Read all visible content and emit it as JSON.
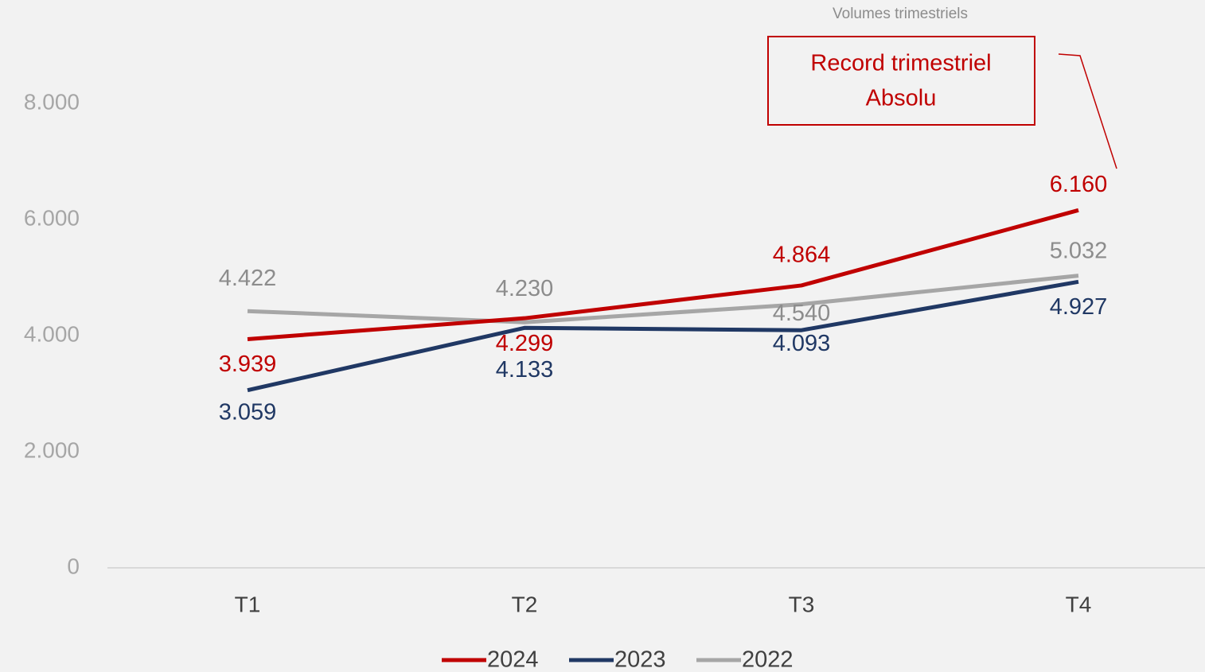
{
  "chart_data": {
    "type": "line",
    "title": "Volumes trimestriels",
    "annotation": [
      "Record trimestriel",
      "Absolu"
    ],
    "categories": [
      "T1",
      "T2",
      "T3",
      "T4"
    ],
    "series": [
      {
        "name": "2024",
        "color": "#c00000",
        "values": [
          3939,
          4299,
          4864,
          6160
        ],
        "value_labels": [
          "3.939",
          "4.299",
          "4.864",
          "6.160"
        ]
      },
      {
        "name": "2023",
        "color": "#203864",
        "values": [
          3059,
          4133,
          4093,
          4927
        ],
        "value_labels": [
          "3.059",
          "4.133",
          "4.093",
          "4.927"
        ]
      },
      {
        "name": "2022",
        "color": "#a6a6a6",
        "values": [
          4422,
          4230,
          4540,
          5032
        ],
        "value_labels": [
          "4.422",
          "4.230",
          "4.540",
          "5.032"
        ]
      }
    ],
    "ylim": [
      0,
      9000
    ],
    "yticks": [
      0,
      {
        "value": 2000,
        "label": "2.000"
      },
      {
        "value": 4000,
        "label": "4.000"
      },
      {
        "value": 6000,
        "label": "6.000"
      },
      {
        "value": 8000,
        "label": "8.000"
      }
    ],
    "grid": false,
    "legend": "bottom"
  }
}
